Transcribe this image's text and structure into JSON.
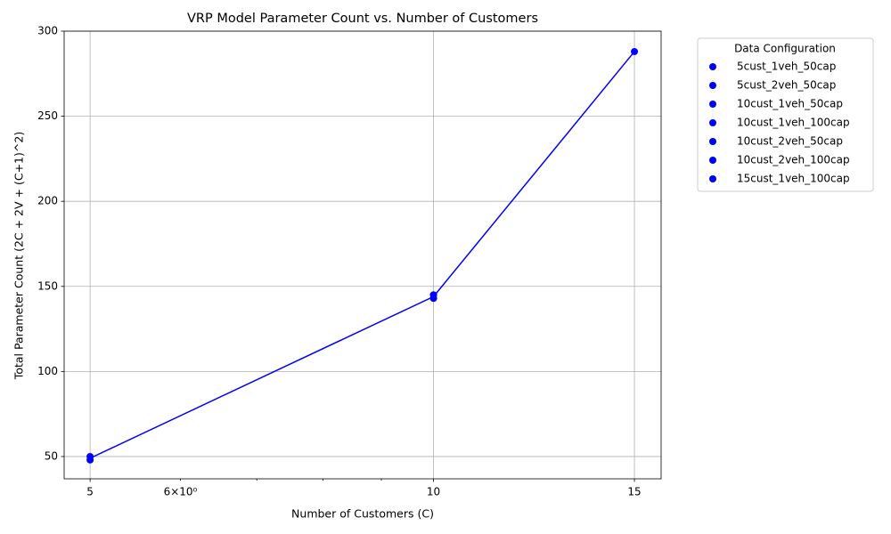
{
  "chart_data": {
    "type": "scatter",
    "title": "VRP Model Parameter Count vs. Number of Customers",
    "xlabel": "Number of Customers (C)",
    "ylabel": "Total Parameter Count (2C + 2V + (C+1)^2)",
    "xscale": "log",
    "xlim": [
      4.745,
      15.83
    ],
    "ylim": [
      36.9,
      300
    ],
    "xticks": [
      5,
      10,
      15
    ],
    "xminor_ticks": [
      {
        "value": 6,
        "label": "6×10⁰"
      },
      7,
      8,
      9
    ],
    "yticks": [
      50,
      100,
      150,
      200,
      250,
      300
    ],
    "grid": true,
    "legend_title": "Data Configuration",
    "legend_position": "outside right",
    "series": [
      {
        "name": "5cust_1veh_50cap",
        "color": "#0000ff",
        "x": [
          5
        ],
        "values": [
          48
        ]
      },
      {
        "name": "5cust_2veh_50cap",
        "color": "#0000ff",
        "x": [
          5
        ],
        "values": [
          50
        ]
      },
      {
        "name": "10cust_1veh_50cap",
        "color": "#0000ff",
        "x": [
          10
        ],
        "values": [
          143
        ]
      },
      {
        "name": "10cust_1veh_100cap",
        "color": "#0000ff",
        "x": [
          10
        ],
        "values": [
          143
        ]
      },
      {
        "name": "10cust_2veh_50cap",
        "color": "#0000ff",
        "x": [
          10
        ],
        "values": [
          145
        ]
      },
      {
        "name": "10cust_2veh_100cap",
        "color": "#0000ff",
        "x": [
          10
        ],
        "values": [
          145
        ]
      },
      {
        "name": "15cust_1veh_100cap",
        "color": "#0000ff",
        "x": [
          15
        ],
        "values": [
          288
        ]
      }
    ],
    "line": {
      "color": "#0000ff",
      "x": [
        5,
        10,
        15
      ],
      "values": [
        49,
        144,
        288
      ]
    }
  }
}
